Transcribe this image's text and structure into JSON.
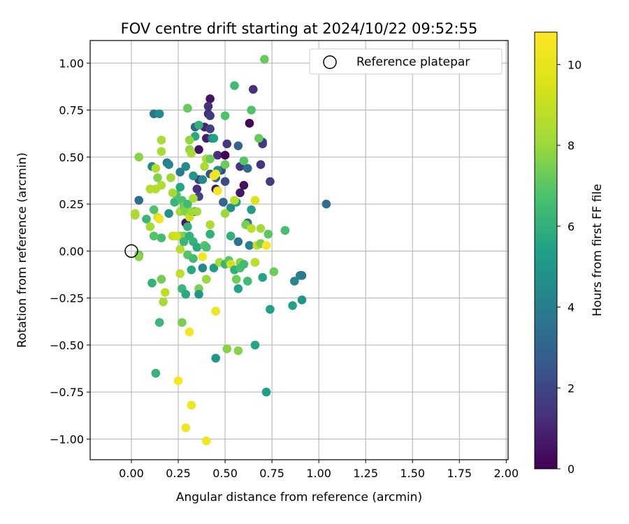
{
  "chart_data": {
    "type": "scatter",
    "title": "FOV centre drift starting at 2024/10/22 09:52:55",
    "xlabel": "Angular distance from reference (arcmin)",
    "ylabel": "Rotation from reference (arcmin)",
    "xlim": [
      -0.22,
      2.01
    ],
    "ylim": [
      -1.11,
      1.12
    ],
    "xticks": [
      0.0,
      0.25,
      0.5,
      0.75,
      1.0,
      1.25,
      1.5,
      1.75,
      2.0
    ],
    "xtick_labels": [
      "0.00",
      "0.25",
      "0.50",
      "0.75",
      "1.00",
      "1.25",
      "1.50",
      "1.75",
      "2.00"
    ],
    "yticks": [
      -1.0,
      -0.75,
      -0.5,
      -0.25,
      0.0,
      0.25,
      0.5,
      0.75,
      1.0
    ],
    "ytick_labels": [
      "−1.00",
      "−0.75",
      "−0.50",
      "−0.25",
      "0.00",
      "0.25",
      "0.50",
      "0.75",
      "1.00"
    ],
    "grid": true,
    "legend": {
      "position": "upper-right",
      "entries": [
        "Reference platepar"
      ]
    },
    "reference_point": {
      "x": 0.0,
      "y": 0.0,
      "marker": "open-circle"
    },
    "colorbar": {
      "label": "Hours from first FF file",
      "range": [
        0,
        10.8
      ],
      "ticks": [
        0,
        2,
        4,
        6,
        8,
        10
      ],
      "tick_labels": [
        "0",
        "2",
        "4",
        "6",
        "8",
        "10"
      ],
      "colormap": "viridis"
    },
    "points": [
      [
        0.42,
        0.81,
        0.5
      ],
      [
        0.41,
        0.77,
        1.3
      ],
      [
        0.41,
        0.73,
        1.2
      ],
      [
        0.42,
        0.72,
        1.6
      ],
      [
        0.65,
        0.86,
        1.3
      ],
      [
        0.63,
        0.68,
        0.1
      ],
      [
        0.39,
        0.66,
        1.0
      ],
      [
        0.42,
        0.65,
        1.8
      ],
      [
        0.34,
        0.66,
        3.0
      ],
      [
        0.36,
        0.54,
        0.5
      ],
      [
        0.4,
        0.6,
        0.8
      ],
      [
        0.43,
        0.6,
        3.7
      ],
      [
        0.46,
        0.51,
        1.3
      ],
      [
        0.5,
        0.51,
        0.1
      ],
      [
        0.51,
        0.57,
        1.5
      ],
      [
        0.57,
        0.56,
        3.0
      ],
      [
        0.7,
        0.58,
        2.5
      ],
      [
        0.7,
        0.57,
        1.6
      ],
      [
        0.58,
        0.45,
        1.5
      ],
      [
        0.62,
        0.44,
        3.2
      ],
      [
        0.69,
        0.46,
        1.4
      ],
      [
        0.74,
        0.37,
        1.7
      ],
      [
        0.6,
        0.35,
        0.4
      ],
      [
        0.58,
        0.31,
        0.6
      ],
      [
        0.48,
        0.43,
        2.2
      ],
      [
        0.45,
        0.33,
        0.7
      ],
      [
        0.35,
        0.33,
        1.3
      ],
      [
        0.36,
        0.29,
        1.9
      ],
      [
        0.34,
        0.21,
        1.7
      ],
      [
        0.29,
        0.15,
        0.7
      ],
      [
        0.45,
        0.39,
        2.9
      ],
      [
        0.5,
        0.37,
        2.2
      ],
      [
        0.49,
        0.26,
        3.1
      ],
      [
        0.42,
        0.41,
        2.4
      ],
      [
        0.36,
        0.38,
        1.7
      ],
      [
        1.04,
        0.25,
        3.4
      ],
      [
        0.57,
        0.05,
        3.6
      ],
      [
        0.62,
        0.15,
        3.8
      ],
      [
        0.64,
        0.22,
        5.3
      ],
      [
        0.63,
        0.03,
        4.1
      ],
      [
        0.53,
        0.23,
        4.7
      ],
      [
        0.56,
        0.26,
        5.4
      ],
      [
        0.19,
        0.47,
        4.0
      ],
      [
        0.2,
        0.46,
        4.3
      ],
      [
        0.11,
        0.45,
        4.4
      ],
      [
        0.12,
        0.73,
        3.7
      ],
      [
        0.15,
        0.73,
        4.6
      ],
      [
        0.26,
        0.42,
        3.9
      ],
      [
        0.29,
        0.45,
        4.5
      ],
      [
        0.33,
        0.4,
        5.0
      ],
      [
        0.38,
        0.38,
        4.4
      ],
      [
        0.46,
        0.43,
        4.6
      ],
      [
        0.34,
        0.61,
        5.7
      ],
      [
        0.44,
        0.6,
        5.5
      ],
      [
        0.36,
        0.67,
        6.0
      ],
      [
        0.55,
        0.88,
        6.4
      ],
      [
        0.71,
        1.02,
        7.2
      ],
      [
        0.5,
        0.72,
        6.8
      ],
      [
        0.64,
        0.75,
        6.8
      ],
      [
        0.68,
        0.6,
        7.2
      ],
      [
        0.6,
        0.48,
        6.9
      ],
      [
        0.3,
        0.76,
        7.2
      ],
      [
        0.04,
        0.27,
        3.3
      ],
      [
        0.08,
        0.17,
        6.3
      ],
      [
        0.12,
        0.22,
        6.8
      ],
      [
        0.14,
        0.18,
        9.2
      ],
      [
        0.15,
        0.17,
        10.4
      ],
      [
        0.16,
        0.07,
        6.6
      ],
      [
        0.2,
        0.2,
        4.8
      ],
      [
        0.23,
        0.26,
        6.2
      ],
      [
        0.24,
        0.3,
        6.8
      ],
      [
        0.26,
        0.21,
        8.2
      ],
      [
        0.26,
        0.34,
        5.6
      ],
      [
        0.27,
        0.27,
        6.7
      ],
      [
        0.28,
        0.24,
        7.3
      ],
      [
        0.28,
        0.08,
        7.4
      ],
      [
        0.3,
        0.13,
        6.0
      ],
      [
        0.31,
        0.08,
        6.1
      ],
      [
        0.29,
        0.21,
        7.6
      ],
      [
        0.3,
        0.25,
        6.5
      ],
      [
        0.31,
        0.18,
        9.2
      ],
      [
        0.32,
        0.21,
        8.0
      ],
      [
        0.33,
        0.28,
        8.4
      ],
      [
        0.35,
        0.21,
        8.2
      ],
      [
        0.33,
        0.05,
        6.1
      ],
      [
        0.35,
        0.02,
        5.8
      ],
      [
        0.39,
        0.03,
        7.0
      ],
      [
        0.4,
        0.02,
        6.7
      ],
      [
        0.42,
        0.09,
        6.0
      ],
      [
        0.42,
        0.14,
        8.4
      ],
      [
        0.5,
        0.2,
        8.0
      ],
      [
        0.53,
        0.08,
        6.0
      ],
      [
        0.55,
        0.27,
        8.7
      ],
      [
        0.66,
        0.27,
        9.6
      ],
      [
        0.61,
        0.14,
        7.5
      ],
      [
        0.64,
        0.12,
        8.7
      ],
      [
        0.69,
        0.12,
        8.2
      ],
      [
        0.73,
        0.09,
        7.0
      ],
      [
        0.67,
        0.03,
        9.0
      ],
      [
        0.69,
        0.04,
        7.5
      ],
      [
        0.72,
        0.03,
        10.6
      ],
      [
        0.82,
        0.11,
        6.6
      ],
      [
        0.21,
        0.39,
        8.1
      ],
      [
        0.22,
        0.31,
        8.2
      ],
      [
        0.26,
        0.08,
        7.7
      ],
      [
        0.31,
        0.59,
        7.9
      ],
      [
        0.31,
        0.54,
        7.9
      ],
      [
        0.32,
        0.52,
        8.3
      ],
      [
        0.39,
        0.45,
        8.3
      ],
      [
        0.4,
        0.49,
        8.3
      ],
      [
        0.42,
        0.49,
        7.3
      ],
      [
        0.5,
        0.46,
        7.3
      ],
      [
        0.16,
        0.59,
        8.3
      ],
      [
        0.16,
        0.53,
        8.3
      ],
      [
        0.13,
        0.44,
        8.6
      ],
      [
        0.04,
        0.5,
        7.7
      ],
      [
        0.14,
        0.39,
        7.6
      ],
      [
        0.1,
        0.33,
        8.5
      ],
      [
        0.13,
        0.33,
        8.6
      ],
      [
        0.16,
        0.35,
        8.5
      ],
      [
        0.1,
        0.13,
        8.3
      ],
      [
        0.12,
        0.08,
        6.9
      ],
      [
        0.02,
        0.2,
        8.5
      ],
      [
        0.02,
        0.19,
        8.3
      ],
      [
        0.04,
        -0.02,
        7.0
      ],
      [
        0.04,
        -0.03,
        7.8
      ],
      [
        0.22,
        0.08,
        9.0
      ],
      [
        0.24,
        0.08,
        9.3
      ],
      [
        0.26,
        0.01,
        8.6
      ],
      [
        0.28,
        0.05,
        6.3
      ],
      [
        0.3,
        -0.02,
        6.9
      ],
      [
        0.33,
        -0.04,
        6.5
      ],
      [
        0.38,
        -0.03,
        10.4
      ],
      [
        0.44,
        -0.09,
        5.2
      ],
      [
        0.47,
        -0.06,
        8.2
      ],
      [
        0.5,
        -0.07,
        6.2
      ],
      [
        0.52,
        -0.05,
        7.0
      ],
      [
        0.53,
        -0.07,
        9.3
      ],
      [
        0.55,
        -0.1,
        6.0
      ],
      [
        0.58,
        -0.06,
        7.8
      ],
      [
        0.58,
        -0.09,
        6.6
      ],
      [
        0.6,
        -0.07,
        6.5
      ],
      [
        0.66,
        -0.06,
        8.7
      ],
      [
        0.7,
        -0.14,
        5.5
      ],
      [
        0.76,
        -0.11,
        7.3
      ],
      [
        0.11,
        -0.17,
        6.1
      ],
      [
        0.16,
        -0.15,
        7.4
      ],
      [
        0.17,
        -0.27,
        8.3
      ],
      [
        0.18,
        -0.22,
        8.8
      ],
      [
        0.27,
        -0.2,
        6.3
      ],
      [
        0.29,
        -0.23,
        5.7
      ],
      [
        0.32,
        -0.1,
        5.7
      ],
      [
        0.36,
        -0.2,
        7.5
      ],
      [
        0.36,
        -0.23,
        5.0
      ],
      [
        0.4,
        -0.15,
        8.0
      ],
      [
        0.45,
        -0.32,
        10.2
      ],
      [
        0.56,
        -0.15,
        7.3
      ],
      [
        0.57,
        -0.2,
        5.5
      ],
      [
        0.62,
        -0.16,
        6.5
      ],
      [
        0.38,
        -0.09,
        4.4
      ],
      [
        0.74,
        -0.31,
        5.4
      ],
      [
        0.86,
        -0.29,
        5.5
      ],
      [
        0.9,
        -0.13,
        4.0
      ],
      [
        0.91,
        -0.13,
        3.9
      ],
      [
        0.87,
        -0.16,
        4.3
      ],
      [
        0.91,
        -0.26,
        4.9
      ],
      [
        0.15,
        -0.38,
        6.3
      ],
      [
        0.27,
        -0.38,
        7.5
      ],
      [
        0.31,
        -0.43,
        10.5
      ],
      [
        0.26,
        -0.12,
        8.7
      ],
      [
        0.45,
        -0.57,
        5.0
      ],
      [
        0.51,
        -0.52,
        7.7
      ],
      [
        0.57,
        -0.53,
        7.7
      ],
      [
        0.66,
        -0.5,
        5.6
      ],
      [
        0.72,
        -0.75,
        5.4
      ],
      [
        0.13,
        -0.65,
        6.2
      ],
      [
        0.25,
        -0.69,
        10.6
      ],
      [
        0.32,
        -0.82,
        10.4
      ],
      [
        0.29,
        -0.94,
        10.3
      ],
      [
        0.4,
        -1.01,
        10.4
      ],
      [
        0.46,
        0.32,
        10.4
      ],
      [
        0.44,
        0.4,
        10.5
      ],
      [
        0.45,
        0.41,
        10.3
      ]
    ]
  }
}
